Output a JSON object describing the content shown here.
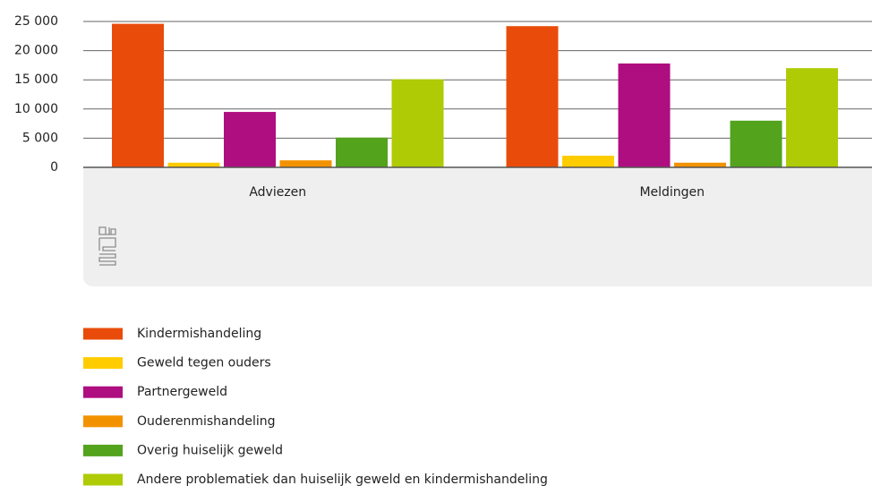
{
  "chart_data": {
    "type": "bar",
    "categories": [
      "Adviezen",
      "Meldingen"
    ],
    "series": [
      {
        "name": "Kindermishandeling",
        "color": "#e94c0a",
        "values": [
          24600,
          24200
        ]
      },
      {
        "name": "Geweld tegen ouders",
        "color": "#ffcc00",
        "values": [
          800,
          2000
        ]
      },
      {
        "name": "Partnergeweld",
        "color": "#af0e80",
        "values": [
          9500,
          17800
        ]
      },
      {
        "name": "Ouderenmishandeling",
        "color": "#f39200",
        "values": [
          1200,
          800
        ]
      },
      {
        "name": "Overig huiselijk geweld",
        "color": "#53a31d",
        "values": [
          5100,
          8000
        ]
      },
      {
        "name": "Andere problematiek dan huiselijk geweld en kindermishandeling",
        "color": "#afcb05",
        "values": [
          15100,
          17000
        ]
      }
    ],
    "ylim": [
      0,
      25000
    ],
    "yticks": [
      0,
      {
        "value": 5000,
        "label": "5 000"
      },
      {
        "value": 10000,
        "label": "10 000"
      },
      {
        "value": 15000,
        "label": "15 000"
      },
      {
        "value": 20000,
        "label": "20 000"
      },
      {
        "value": 25000,
        "label": "25 000"
      }
    ],
    "grid": true
  }
}
